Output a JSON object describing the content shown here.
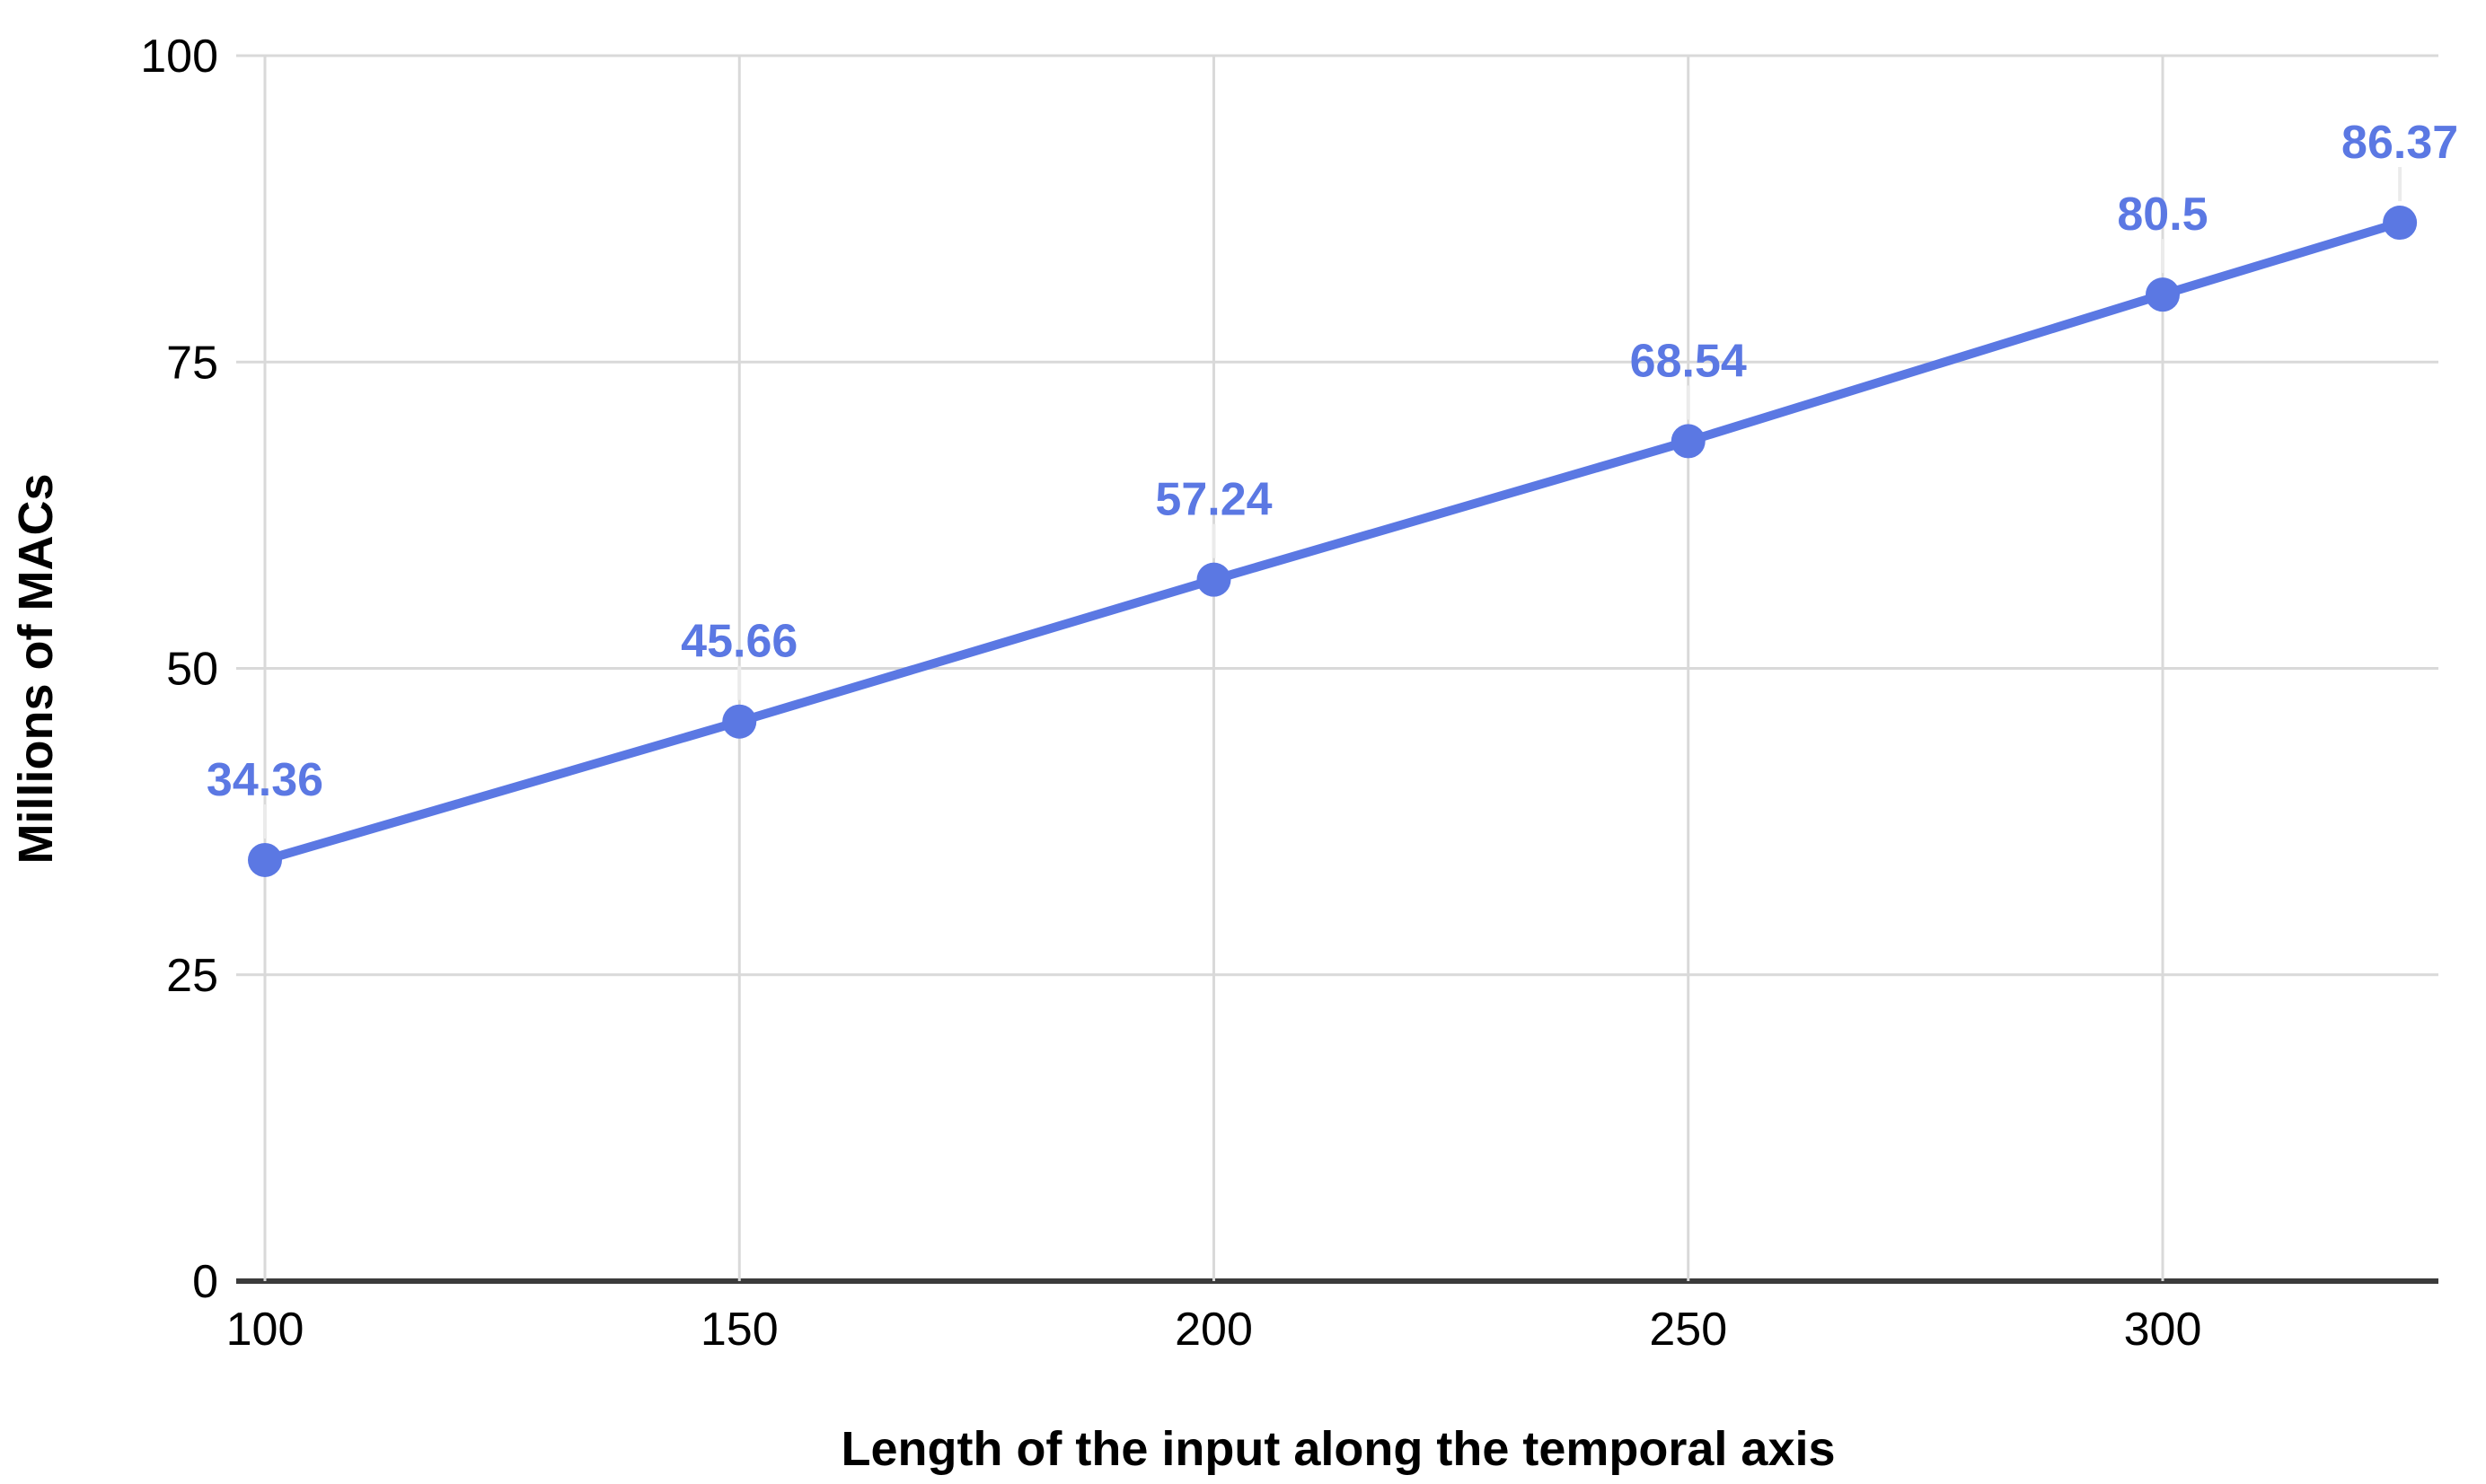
{
  "chart_data": {
    "type": "line",
    "title": "",
    "xlabel": "Length of the input along the temporal axis",
    "ylabel": "Millions of MACs",
    "x": [
      100,
      150,
      200,
      250,
      300,
      325
    ],
    "series": [
      {
        "name": "Millions of MACs",
        "values": [
          34.36,
          45.66,
          57.24,
          68.54,
          80.5,
          86.37
        ]
      }
    ],
    "point_labels": [
      "34.36",
      "45.66",
      "57.24",
      "68.54",
      "80.5",
      "86.37"
    ],
    "x_ticks": [
      100,
      150,
      200,
      250,
      300
    ],
    "y_ticks": [
      0,
      25,
      50,
      75,
      100
    ],
    "xlim": [
      100,
      329
    ],
    "ylim": [
      0,
      100
    ],
    "grid": true,
    "legend": "none",
    "colors": {
      "series": "#5b78e3",
      "gridline": "#d9d9d9",
      "axis_line": "#3b3b3b",
      "tick_text": "#000000",
      "leader": "#ebebeb",
      "background": "#ffffff"
    }
  }
}
